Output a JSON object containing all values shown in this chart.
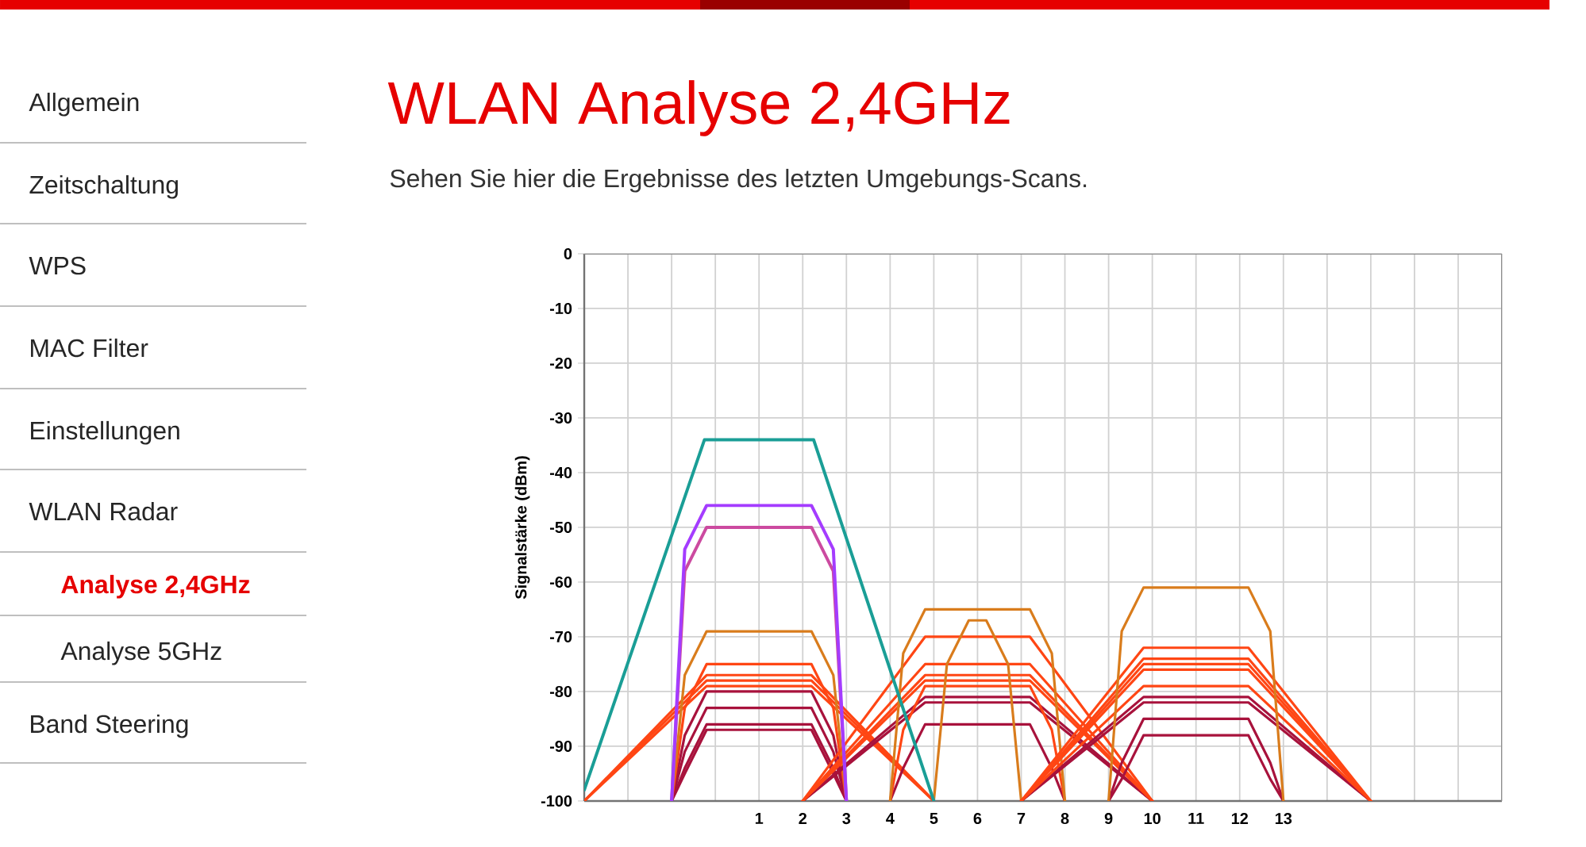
{
  "chart_data": {
    "type": "line",
    "title": "WLAN Analyse 2,4GHz",
    "subtitle": "Sehen Sie hier die Ergebnisse des letzten Umgebungs-Scans.",
    "ylabel": "Signalstärke (dBm)",
    "annotations": [
      "Allgemein",
      "Zeitschaltung",
      "WPS",
      "MAC Filter",
      "Einstellungen",
      "WLAN Radar",
      "Analyse 2,4GHz",
      "Analyse 5GHz",
      "Band Steering"
    ],
    "xlim": [
      -3,
      18
    ],
    "ylim": [
      -100,
      0
    ],
    "grid": true,
    "xticks": [
      {
        "value": -3,
        "label": null
      },
      {
        "value": -2,
        "label": null
      },
      {
        "value": -1,
        "label": null
      },
      {
        "value": 0,
        "label": null
      },
      1,
      2,
      3,
      4,
      5,
      6,
      7,
      8,
      9,
      10,
      11,
      12,
      13,
      {
        "value": 14,
        "label": null
      },
      {
        "value": 15,
        "label": null
      },
      {
        "value": 16,
        "label": null
      },
      {
        "value": 17,
        "label": null
      },
      {
        "value": 18,
        "label": null
      }
    ],
    "yticks": [
      0,
      -10,
      -20,
      -30,
      -40,
      -50,
      -60,
      -70,
      -80,
      -90,
      -100
    ],
    "series": [
      {
        "color": "#a8123c",
        "x": [
          -1,
          -0.7,
          -0.2,
          2.2,
          2.7,
          3
        ],
        "values": [
          -100,
          -95,
          -87,
          -87,
          -95,
          -100
        ]
      },
      {
        "color": "#a8123c",
        "x": [
          -1,
          -0.7,
          -0.2,
          2.2,
          2.7,
          3
        ],
        "values": [
          -100,
          -94,
          -86,
          -86,
          -94,
          -100
        ]
      },
      {
        "color": "#a8123c",
        "x": [
          -1,
          -0.7,
          -0.2,
          2.2,
          2.7,
          3
        ],
        "values": [
          -100,
          -91,
          -83,
          -83,
          -91,
          -100
        ]
      },
      {
        "color": "#a8123c",
        "x": [
          -1,
          -0.7,
          -0.2,
          2.2,
          2.7,
          3
        ],
        "values": [
          -100,
          -88,
          -80,
          -80,
          -88,
          -100
        ]
      },
      {
        "color": "#ff4614",
        "x": [
          -3,
          -0.2,
          2.2,
          5
        ],
        "values": [
          -100,
          -79,
          -79,
          -100
        ]
      },
      {
        "color": "#ff4614",
        "x": [
          -3,
          -0.2,
          2.2,
          5
        ],
        "values": [
          -100,
          -78,
          -78,
          -100
        ]
      },
      {
        "color": "#ff4614",
        "x": [
          -3,
          -0.2,
          2.2,
          5
        ],
        "values": [
          -100,
          -77,
          -77,
          -100
        ]
      },
      {
        "color": "#ff4614",
        "x": [
          -1,
          -0.7,
          -0.2,
          2.2,
          2.7,
          3
        ],
        "values": [
          -100,
          -83,
          -75,
          -75,
          -83,
          -100
        ]
      },
      {
        "color": "#d97c1c",
        "x": [
          -1,
          -0.7,
          -0.2,
          2.2,
          2.7,
          3
        ],
        "values": [
          -100,
          -77,
          -69,
          -69,
          -77,
          -100
        ]
      },
      {
        "color": "#a8123c",
        "x": [
          4,
          4.3,
          4.8,
          7.2,
          7.7,
          8
        ],
        "values": [
          -100,
          -94,
          -86,
          -86,
          -94,
          -100
        ]
      },
      {
        "color": "#a8123c",
        "x": [
          2,
          4.8,
          7.2,
          10
        ],
        "values": [
          -100,
          -82,
          -82,
          -100
        ]
      },
      {
        "color": "#a8123c",
        "x": [
          2,
          4.8,
          7.2,
          10
        ],
        "values": [
          -100,
          -81,
          -81,
          -100
        ]
      },
      {
        "color": "#ff4614",
        "x": [
          4,
          4.3,
          4.8,
          7.2,
          7.7,
          8
        ],
        "values": [
          -100,
          -87,
          -79,
          -79,
          -87,
          -100
        ]
      },
      {
        "color": "#ff4614",
        "x": [
          2,
          4.8,
          7.2,
          10
        ],
        "values": [
          -100,
          -78,
          -78,
          -100
        ]
      },
      {
        "color": "#ff4614",
        "x": [
          2,
          4.8,
          7.2,
          10
        ],
        "values": [
          -100,
          -77,
          -77,
          -100
        ]
      },
      {
        "color": "#ff4614",
        "x": [
          2,
          4.8,
          7.2,
          10
        ],
        "values": [
          -100,
          -75,
          -75,
          -100
        ]
      },
      {
        "color": "#ff4614",
        "x": [
          2,
          4.8,
          7.2,
          10
        ],
        "values": [
          -100,
          -70,
          -70,
          -100
        ]
      },
      {
        "color": "#d97c1c",
        "x": [
          4,
          4.3,
          4.8,
          7.2,
          7.7,
          8
        ],
        "values": [
          -100,
          -73,
          -65,
          -65,
          -73,
          -100
        ]
      },
      {
        "color": "#d97c1c",
        "x": [
          5,
          5.3,
          5.8,
          6.2,
          6.7,
          7
        ],
        "values": [
          -100,
          -75,
          -67,
          -67,
          -75,
          -100
        ]
      },
      {
        "color": "#a8123c",
        "x": [
          9,
          9.3,
          9.8,
          12.2,
          12.7,
          13
        ],
        "values": [
          -100,
          -96,
          -88,
          -88,
          -96,
          -100
        ]
      },
      {
        "color": "#a8123c",
        "x": [
          9,
          9.3,
          9.8,
          12.2,
          12.7,
          13
        ],
        "values": [
          -100,
          -93,
          -85,
          -85,
          -93,
          -100
        ]
      },
      {
        "color": "#a8123c",
        "x": [
          7,
          9.8,
          12.2,
          15
        ],
        "values": [
          -100,
          -82,
          -82,
          -100
        ]
      },
      {
        "color": "#a8123c",
        "x": [
          7,
          9.8,
          12.2,
          15
        ],
        "values": [
          -100,
          -81,
          -81,
          -100
        ]
      },
      {
        "color": "#ff4614",
        "x": [
          7,
          9.8,
          12.2,
          15
        ],
        "values": [
          -100,
          -79,
          -79,
          -100
        ]
      },
      {
        "color": "#ff4614",
        "x": [
          7,
          9.8,
          12.2,
          15
        ],
        "values": [
          -100,
          -76,
          -76,
          -100
        ]
      },
      {
        "color": "#ff4614",
        "x": [
          7,
          9.8,
          12.2,
          15
        ],
        "values": [
          -100,
          -75,
          -75,
          -100
        ]
      },
      {
        "color": "#ff4614",
        "x": [
          7,
          9.8,
          12.2,
          15
        ],
        "values": [
          -100,
          -74,
          -74,
          -100
        ]
      },
      {
        "color": "#ff4614",
        "x": [
          7,
          9.8,
          12.2,
          15
        ],
        "values": [
          -100,
          -72,
          -72,
          -100
        ]
      },
      {
        "color": "#d97c1c",
        "x": [
          9,
          9.3,
          9.8,
          12.2,
          12.7,
          13
        ],
        "values": [
          -100,
          -69,
          -61,
          -61,
          -69,
          -100
        ]
      },
      {
        "color": "#cc4aa0",
        "x": [
          -1,
          -0.7,
          -0.2,
          2.2,
          2.7,
          3
        ],
        "values": [
          -100,
          -58,
          -50,
          -50,
          -58,
          -100
        ]
      },
      {
        "color": "#a43cff",
        "x": [
          -1,
          -0.7,
          -0.2,
          2.2,
          2.7,
          3
        ],
        "values": [
          -100,
          -54,
          -46,
          -46,
          -54,
          -100
        ]
      },
      {
        "color": "#1a9e96",
        "x": [
          -3,
          -0.25,
          2.25,
          5
        ],
        "values": [
          -98,
          -34,
          -34,
          -100
        ]
      }
    ]
  }
}
